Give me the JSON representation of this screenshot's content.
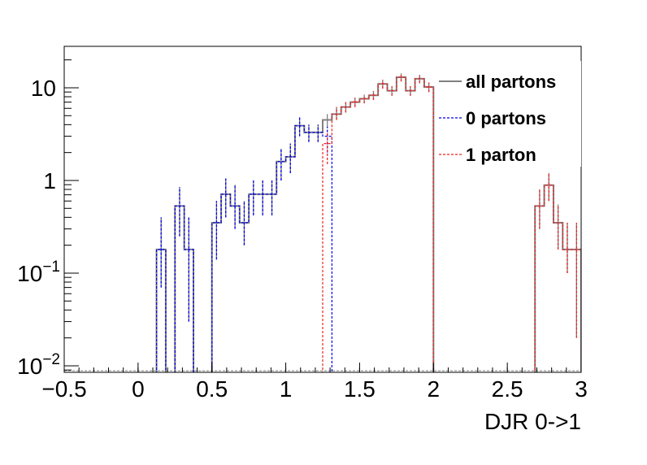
{
  "chart_data": {
    "type": "step-histogram",
    "title": "",
    "xlabel": "DJR 0->1",
    "ylabel": "",
    "xlim": [
      -0.5,
      3
    ],
    "ylim": [
      0.0085,
      28
    ],
    "yscale": "log",
    "grid": false,
    "legend_position": "top-right",
    "bin_width": 0.0625,
    "x_ticks": [
      {
        "value": -0.5,
        "label": "−0.5"
      },
      {
        "value": 0,
        "label": "0"
      },
      {
        "value": 0.5,
        "label": "0.5"
      },
      {
        "value": 1,
        "label": "1"
      },
      {
        "value": 1.5,
        "label": "1.5"
      },
      {
        "value": 2,
        "label": "2"
      },
      {
        "value": 2.5,
        "label": "2.5"
      },
      {
        "value": 3,
        "label": "3"
      }
    ],
    "y_ticks": [
      {
        "value": 10,
        "base": "10",
        "exp": ""
      },
      {
        "value": 1,
        "base": "1",
        "exp": ""
      },
      {
        "value": 0.1,
        "base": "10",
        "exp": "−1"
      },
      {
        "value": 0.01,
        "base": "10",
        "exp": "−2"
      }
    ],
    "series": [
      {
        "name": "all partons",
        "color": "#808080",
        "dash": "solid",
        "bins": [
          {
            "x0": 0.125,
            "y": 0.18,
            "err": [
              0.07,
              0.4
            ]
          },
          {
            "x0": 0.1875,
            "y": 0.0,
            "err": null
          },
          {
            "x0": 0.25,
            "y": 0.53,
            "err": [
              0.25,
              0.85
            ]
          },
          {
            "x0": 0.3125,
            "y": 0.18,
            "err": [
              0.03,
              0.4
            ]
          },
          {
            "x0": 0.375,
            "y": 0.0,
            "err": null
          },
          {
            "x0": 0.4375,
            "y": 0.0,
            "err": null
          },
          {
            "x0": 0.5,
            "y": 0.35,
            "err": [
              0.14,
              0.6
            ]
          },
          {
            "x0": 0.5625,
            "y": 0.71,
            "err": [
              0.4,
              1.05
            ]
          },
          {
            "x0": 0.625,
            "y": 0.53,
            "err": [
              0.3,
              0.9
            ]
          },
          {
            "x0": 0.6875,
            "y": 0.35,
            "err": [
              0.2,
              0.6
            ]
          },
          {
            "x0": 0.75,
            "y": 0.71,
            "err": [
              0.42,
              1.0
            ]
          },
          {
            "x0": 0.8125,
            "y": 0.71,
            "err": [
              0.42,
              1.0
            ]
          },
          {
            "x0": 0.875,
            "y": 0.71,
            "err": [
              0.42,
              1.0
            ]
          },
          {
            "x0": 0.9375,
            "y": 1.6,
            "err": [
              1.0,
              2.2
            ]
          },
          {
            "x0": 1.0,
            "y": 1.8,
            "err": [
              1.2,
              2.5
            ]
          },
          {
            "x0": 1.0625,
            "y": 3.9,
            "err": [
              3.0,
              4.8
            ]
          },
          {
            "x0": 1.125,
            "y": 3.3,
            "err": [
              2.6,
              4.0
            ]
          },
          {
            "x0": 1.1875,
            "y": 3.3,
            "err": [
              2.6,
              4.0
            ]
          },
          {
            "x0": 1.25,
            "y": 4.5,
            "err": [
              3.7,
              5.2
            ]
          },
          {
            "x0": 1.3125,
            "y": 5.2,
            "err": [
              4.5,
              6.2
            ]
          },
          {
            "x0": 1.375,
            "y": 6.2,
            "err": [
              5.4,
              7.0
            ]
          },
          {
            "x0": 1.4375,
            "y": 7.0,
            "err": [
              6.2,
              7.8
            ]
          },
          {
            "x0": 1.5,
            "y": 7.6,
            "err": [
              6.8,
              8.4
            ]
          },
          {
            "x0": 1.5625,
            "y": 8.3,
            "err": [
              7.4,
              9.2
            ]
          },
          {
            "x0": 1.625,
            "y": 11.0,
            "err": [
              9.8,
              12.2
            ]
          },
          {
            "x0": 1.6875,
            "y": 9.3,
            "err": [
              8.2,
              10.4
            ]
          },
          {
            "x0": 1.75,
            "y": 13.0,
            "err": [
              11.7,
              14.3
            ]
          },
          {
            "x0": 1.8125,
            "y": 9.3,
            "err": [
              8.2,
              10.4
            ]
          },
          {
            "x0": 1.875,
            "y": 12.5,
            "err": [
              11.2,
              13.8
            ]
          },
          {
            "x0": 1.9375,
            "y": 10.2,
            "err": [
              9.0,
              11.4
            ]
          },
          {
            "x0": 2.6875,
            "y": 0.53,
            "err": [
              0.3,
              0.8
            ]
          },
          {
            "x0": 2.75,
            "y": 0.89,
            "err": [
              0.6,
              1.2
            ]
          },
          {
            "x0": 2.8125,
            "y": 0.35,
            "err": [
              0.18,
              0.55
            ]
          },
          {
            "x0": 2.875,
            "y": 0.18,
            "err": [
              0.1,
              0.35
            ]
          },
          {
            "x0": 2.9375,
            "y": 0.18,
            "err": [
              0.02,
              0.35
            ]
          }
        ]
      },
      {
        "name": "0 partons",
        "color": "#0000ee",
        "dash": "3,2",
        "bins": [
          {
            "x0": 0.125,
            "y": 0.18,
            "err": [
              0.07,
              0.4
            ]
          },
          {
            "x0": 0.1875,
            "y": 0.0,
            "err": null
          },
          {
            "x0": 0.25,
            "y": 0.53,
            "err": [
              0.25,
              0.85
            ]
          },
          {
            "x0": 0.3125,
            "y": 0.18,
            "err": [
              0.03,
              0.4
            ]
          },
          {
            "x0": 0.375,
            "y": 0.0,
            "err": null
          },
          {
            "x0": 0.4375,
            "y": 0.0,
            "err": null
          },
          {
            "x0": 0.5,
            "y": 0.35,
            "err": [
              0.14,
              0.6
            ]
          },
          {
            "x0": 0.5625,
            "y": 0.71,
            "err": [
              0.4,
              1.05
            ]
          },
          {
            "x0": 0.625,
            "y": 0.53,
            "err": [
              0.3,
              0.9
            ]
          },
          {
            "x0": 0.6875,
            "y": 0.35,
            "err": [
              0.2,
              0.6
            ]
          },
          {
            "x0": 0.75,
            "y": 0.71,
            "err": [
              0.42,
              1.0
            ]
          },
          {
            "x0": 0.8125,
            "y": 0.71,
            "err": [
              0.42,
              1.0
            ]
          },
          {
            "x0": 0.875,
            "y": 0.71,
            "err": [
              0.42,
              1.0
            ]
          },
          {
            "x0": 0.9375,
            "y": 1.6,
            "err": [
              1.0,
              2.2
            ]
          },
          {
            "x0": 1.0,
            "y": 1.8,
            "err": [
              1.2,
              2.5
            ]
          },
          {
            "x0": 1.0625,
            "y": 3.9,
            "err": [
              3.0,
              4.8
            ]
          },
          {
            "x0": 1.125,
            "y": 3.3,
            "err": [
              2.6,
              4.0
            ]
          },
          {
            "x0": 1.1875,
            "y": 3.3,
            "err": [
              2.6,
              4.0
            ]
          },
          {
            "x0": 1.25,
            "y": 3.0,
            "err": [
              2.0,
              3.8
            ]
          }
        ]
      },
      {
        "name": "1 parton",
        "color": "#ee2222",
        "dash": "3,2",
        "bins": [
          {
            "x0": 1.25,
            "y": 2.5,
            "err": [
              1.5,
              3.3
            ]
          },
          {
            "x0": 1.3125,
            "y": 5.2,
            "err": [
              4.5,
              6.2
            ]
          },
          {
            "x0": 1.375,
            "y": 6.2,
            "err": [
              5.4,
              7.0
            ]
          },
          {
            "x0": 1.4375,
            "y": 7.0,
            "err": [
              6.2,
              7.8
            ]
          },
          {
            "x0": 1.5,
            "y": 7.6,
            "err": [
              6.8,
              8.4
            ]
          },
          {
            "x0": 1.5625,
            "y": 8.3,
            "err": [
              7.4,
              9.2
            ]
          },
          {
            "x0": 1.625,
            "y": 11.0,
            "err": [
              9.8,
              12.2
            ]
          },
          {
            "x0": 1.6875,
            "y": 9.3,
            "err": [
              8.2,
              10.4
            ]
          },
          {
            "x0": 1.75,
            "y": 13.0,
            "err": [
              11.7,
              14.3
            ]
          },
          {
            "x0": 1.8125,
            "y": 9.3,
            "err": [
              8.2,
              10.4
            ]
          },
          {
            "x0": 1.875,
            "y": 12.5,
            "err": [
              11.2,
              13.8
            ]
          },
          {
            "x0": 1.9375,
            "y": 10.2,
            "err": [
              9.0,
              11.4
            ]
          },
          {
            "x0": 2.6875,
            "y": 0.53,
            "err": [
              0.3,
              0.8
            ]
          },
          {
            "x0": 2.75,
            "y": 0.89,
            "err": [
              0.6,
              1.2
            ]
          },
          {
            "x0": 2.8125,
            "y": 0.35,
            "err": [
              0.18,
              0.55
            ]
          },
          {
            "x0": 2.875,
            "y": 0.18,
            "err": [
              0.1,
              0.35
            ]
          },
          {
            "x0": 2.9375,
            "y": 0.18,
            "err": [
              0.02,
              0.35
            ]
          }
        ]
      }
    ]
  }
}
